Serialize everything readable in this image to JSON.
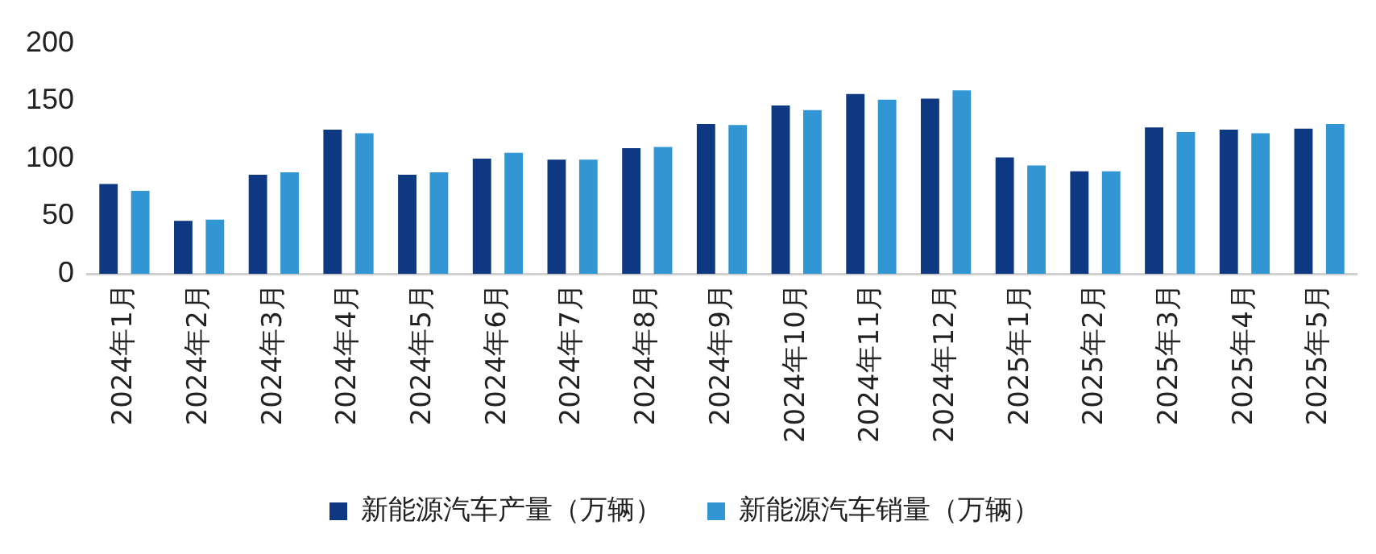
{
  "chart_data": {
    "type": "bar",
    "categories": [
      "2024年1月",
      "2024年2月",
      "2024年3月",
      "2024年4月",
      "2024年5月",
      "2024年6月",
      "2024年7月",
      "2024年8月",
      "2024年9月",
      "2024年10月",
      "2024年11月",
      "2024年12月",
      "2025年1月",
      "2025年2月",
      "2025年3月",
      "2025年4月",
      "2025年5月"
    ],
    "series": [
      {
        "name": "新能源汽车产量（万辆）",
        "color": "#0f3882",
        "values": [
          78,
          46,
          86,
          125,
          86,
          100,
          99,
          109,
          130,
          146,
          156,
          152,
          101,
          89,
          127,
          125,
          126
        ]
      },
      {
        "name": "新能源汽车销量（万辆）",
        "color": "#3196d3",
        "values": [
          72,
          47,
          88,
          122,
          88,
          105,
          99,
          110,
          129,
          142,
          151,
          159,
          94,
          89,
          123,
          122,
          130
        ]
      }
    ],
    "ylim": [
      0,
      200
    ],
    "yticks": [
      0,
      50,
      100,
      150,
      200
    ],
    "grid": false,
    "legend": "bottom"
  }
}
